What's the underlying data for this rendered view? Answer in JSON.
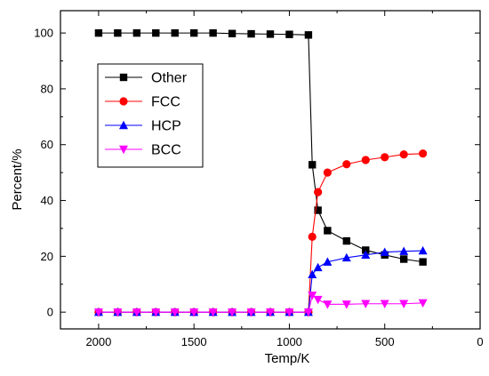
{
  "chart_data": {
    "type": "line",
    "title": "",
    "xlabel": "Temp/K",
    "ylabel": "Percent/%",
    "xlim": [
      2200,
      0
    ],
    "ylim": [
      -6,
      108
    ],
    "x_reversed": true,
    "x_ticks": [
      2000,
      1500,
      1000,
      500,
      0
    ],
    "y_ticks": [
      0,
      20,
      40,
      60,
      80,
      100
    ],
    "grid": false,
    "legend_position": "upper-left",
    "series": [
      {
        "name": "Other",
        "color": "#000000",
        "marker": "square",
        "x": [
          2000,
          1900,
          1800,
          1700,
          1600,
          1500,
          1400,
          1300,
          1200,
          1100,
          1000,
          900,
          880,
          850,
          800,
          700,
          600,
          500,
          400,
          300
        ],
        "y": [
          100,
          100,
          100,
          100,
          100,
          100,
          100,
          99.8,
          99.7,
          99.6,
          99.5,
          99.3,
          52.8,
          36.5,
          29.2,
          25.5,
          22.2,
          20.5,
          19.0,
          18.0
        ]
      },
      {
        "name": "FCC",
        "color": "#ff0000",
        "marker": "circle",
        "x": [
          2000,
          1900,
          1800,
          1700,
          1600,
          1500,
          1400,
          1300,
          1200,
          1100,
          1000,
          900,
          880,
          850,
          800,
          700,
          600,
          500,
          400,
          300
        ],
        "y": [
          0,
          0,
          0,
          0,
          0,
          0,
          0,
          0,
          0,
          0,
          0,
          0,
          27.0,
          43.0,
          50.0,
          53.0,
          54.5,
          55.5,
          56.5,
          56.8
        ]
      },
      {
        "name": "HCP",
        "color": "#0000ff",
        "marker": "triangle-up",
        "x": [
          2000,
          1900,
          1800,
          1700,
          1600,
          1500,
          1400,
          1300,
          1200,
          1100,
          1000,
          900,
          880,
          850,
          800,
          700,
          600,
          500,
          400,
          300
        ],
        "y": [
          0,
          0,
          0,
          0,
          0,
          0,
          0,
          0,
          0,
          0,
          0,
          0,
          13.5,
          16.0,
          18.0,
          19.5,
          20.5,
          21.5,
          21.8,
          22.0
        ]
      },
      {
        "name": "BCC",
        "color": "#ff00ff",
        "marker": "triangle-down",
        "x": [
          2000,
          1900,
          1800,
          1700,
          1600,
          1500,
          1400,
          1300,
          1200,
          1100,
          1000,
          900,
          880,
          850,
          800,
          700,
          600,
          500,
          400,
          300
        ],
        "y": [
          0,
          0,
          0,
          0,
          0,
          0,
          0,
          0,
          0,
          0,
          0,
          0,
          6.0,
          4.5,
          2.8,
          2.8,
          3.0,
          3.0,
          3.0,
          3.3
        ]
      }
    ]
  }
}
